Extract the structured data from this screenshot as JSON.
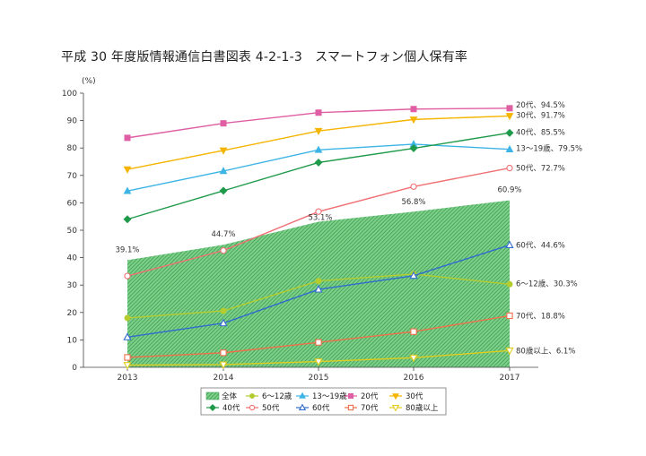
{
  "title": "平成 30 年度版情報通信白書図表 4-2-1-3　スマートフォン個人保有率",
  "chart_data": {
    "type": "line",
    "title": "平成 30 年度版情報通信白書図表 4-2-1-3　スマートフォン個人保有率",
    "ylabel": "(%)",
    "xlabel": "",
    "ylim": [
      0,
      100
    ],
    "yticks": [
      "0",
      "10",
      "20",
      "30",
      "40",
      "50",
      "60",
      "70",
      "80",
      "90",
      "100"
    ],
    "categories": [
      "2013",
      "2014",
      "2015",
      "2016",
      "2017"
    ],
    "total": {
      "name": "全体",
      "values": [
        39.1,
        44.7,
        53.1,
        56.8,
        60.9
      ],
      "labels": [
        "39.1%",
        "44.7%",
        "53.1%",
        "56.8%",
        "60.9%"
      ],
      "color": "#3aa64a"
    },
    "series": [
      {
        "name": "6～12歳",
        "values": [
          18.0,
          20.6,
          31.5,
          34.0,
          30.3
        ],
        "end_label": "6～12歳、30.3%",
        "color": "#b5cc2e",
        "marker": "circle-filled"
      },
      {
        "name": "13～19歳",
        "values": [
          64.3,
          71.6,
          79.3,
          81.4,
          79.5
        ],
        "end_label": "13～19歳、79.5%",
        "color": "#3db4e6",
        "marker": "triangle-up-filled"
      },
      {
        "name": "20代",
        "values": [
          83.7,
          89.0,
          92.9,
          94.2,
          94.5
        ],
        "end_label": "20代、94.5%",
        "color": "#e05ea3",
        "marker": "square-filled"
      },
      {
        "name": "30代",
        "values": [
          72.2,
          79.1,
          86.2,
          90.4,
          91.7
        ],
        "end_label": "30代、91.7%",
        "color": "#f5b400",
        "marker": "triangle-down-filled"
      },
      {
        "name": "40代",
        "values": [
          54.0,
          64.4,
          74.7,
          79.9,
          85.5
        ],
        "end_label": "40代、85.5%",
        "color": "#1f9a4a",
        "marker": "diamond-filled"
      },
      {
        "name": "50代",
        "values": [
          33.3,
          42.6,
          56.8,
          65.9,
          72.7
        ],
        "end_label": "50代、72.7%",
        "color": "#ef6f73",
        "marker": "circle-open"
      },
      {
        "name": "60代",
        "values": [
          11.0,
          16.1,
          28.4,
          33.4,
          44.6
        ],
        "end_label": "60代、44.6%",
        "color": "#2f6ccf",
        "marker": "triangle-up-open"
      },
      {
        "name": "70代",
        "values": [
          3.6,
          5.3,
          9.1,
          13.0,
          18.8
        ],
        "end_label": "70代、18.8%",
        "color": "#ef6f4a",
        "marker": "square-open"
      },
      {
        "name": "80歳以上",
        "values": [
          0.8,
          1.0,
          2.1,
          3.5,
          6.1
        ],
        "end_label": "80歳以上、6.1%",
        "color": "#e0cc1c",
        "marker": "triangle-down-open"
      }
    ],
    "legend_position": "bottom-center",
    "grid": false
  }
}
